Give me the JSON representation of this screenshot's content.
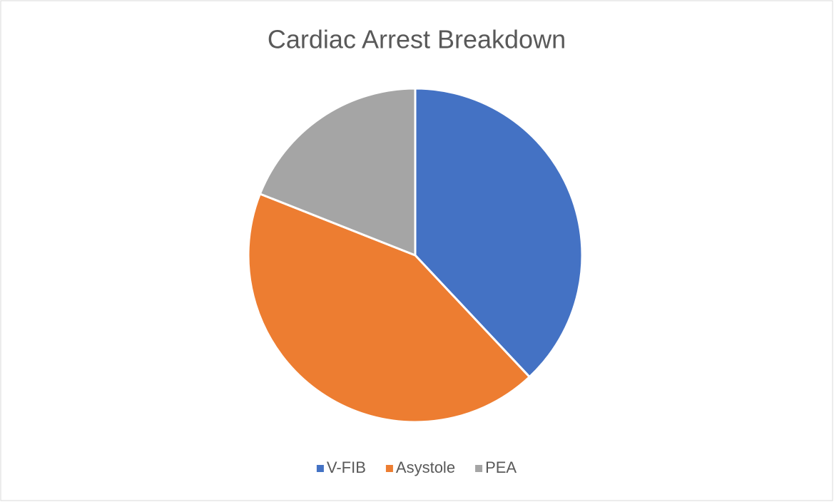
{
  "chart_data": {
    "type": "pie",
    "title": "Cardiac Arrest Breakdown",
    "categories": [
      "V-FIB",
      "Asystole",
      "PEA"
    ],
    "values": [
      38,
      43,
      19
    ],
    "colors": [
      "#4472c4",
      "#ed7d31",
      "#a5a5a5"
    ],
    "legend": "bottom"
  }
}
